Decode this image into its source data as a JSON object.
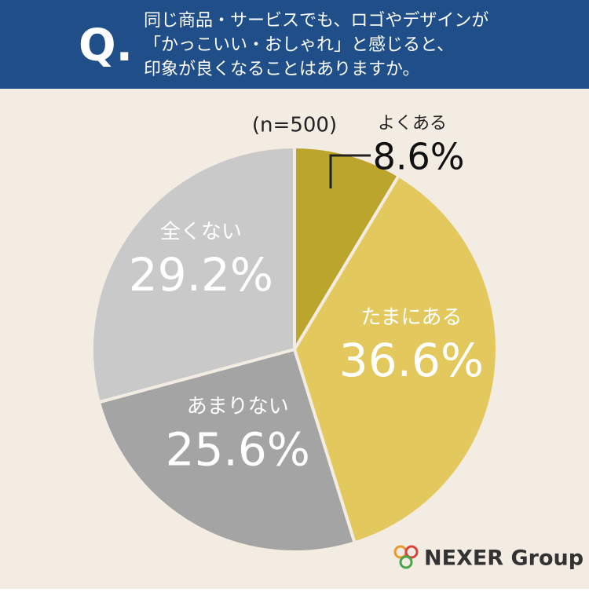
{
  "chart_data": {
    "type": "pie",
    "question_mark": "Q.",
    "title": [
      "同じ商品・サービスでも、ロゴやデザインが",
      "「かっこいい・おしゃれ」と感じると、",
      "印象が良くなることはありますか。"
    ],
    "subtitle": "(n=500)",
    "categories": [
      "よくある",
      "たまにある",
      "あまりない",
      "全くない"
    ],
    "values": [
      8.6,
      36.6,
      25.6,
      29.2
    ],
    "value_labels": [
      "8.6%",
      "36.6%",
      "25.6%",
      "29.2%"
    ],
    "colors": [
      "#bca52d",
      "#e3c95d",
      "#a4a4a4",
      "#c9c9c9"
    ],
    "brand": "NEXER Group"
  }
}
